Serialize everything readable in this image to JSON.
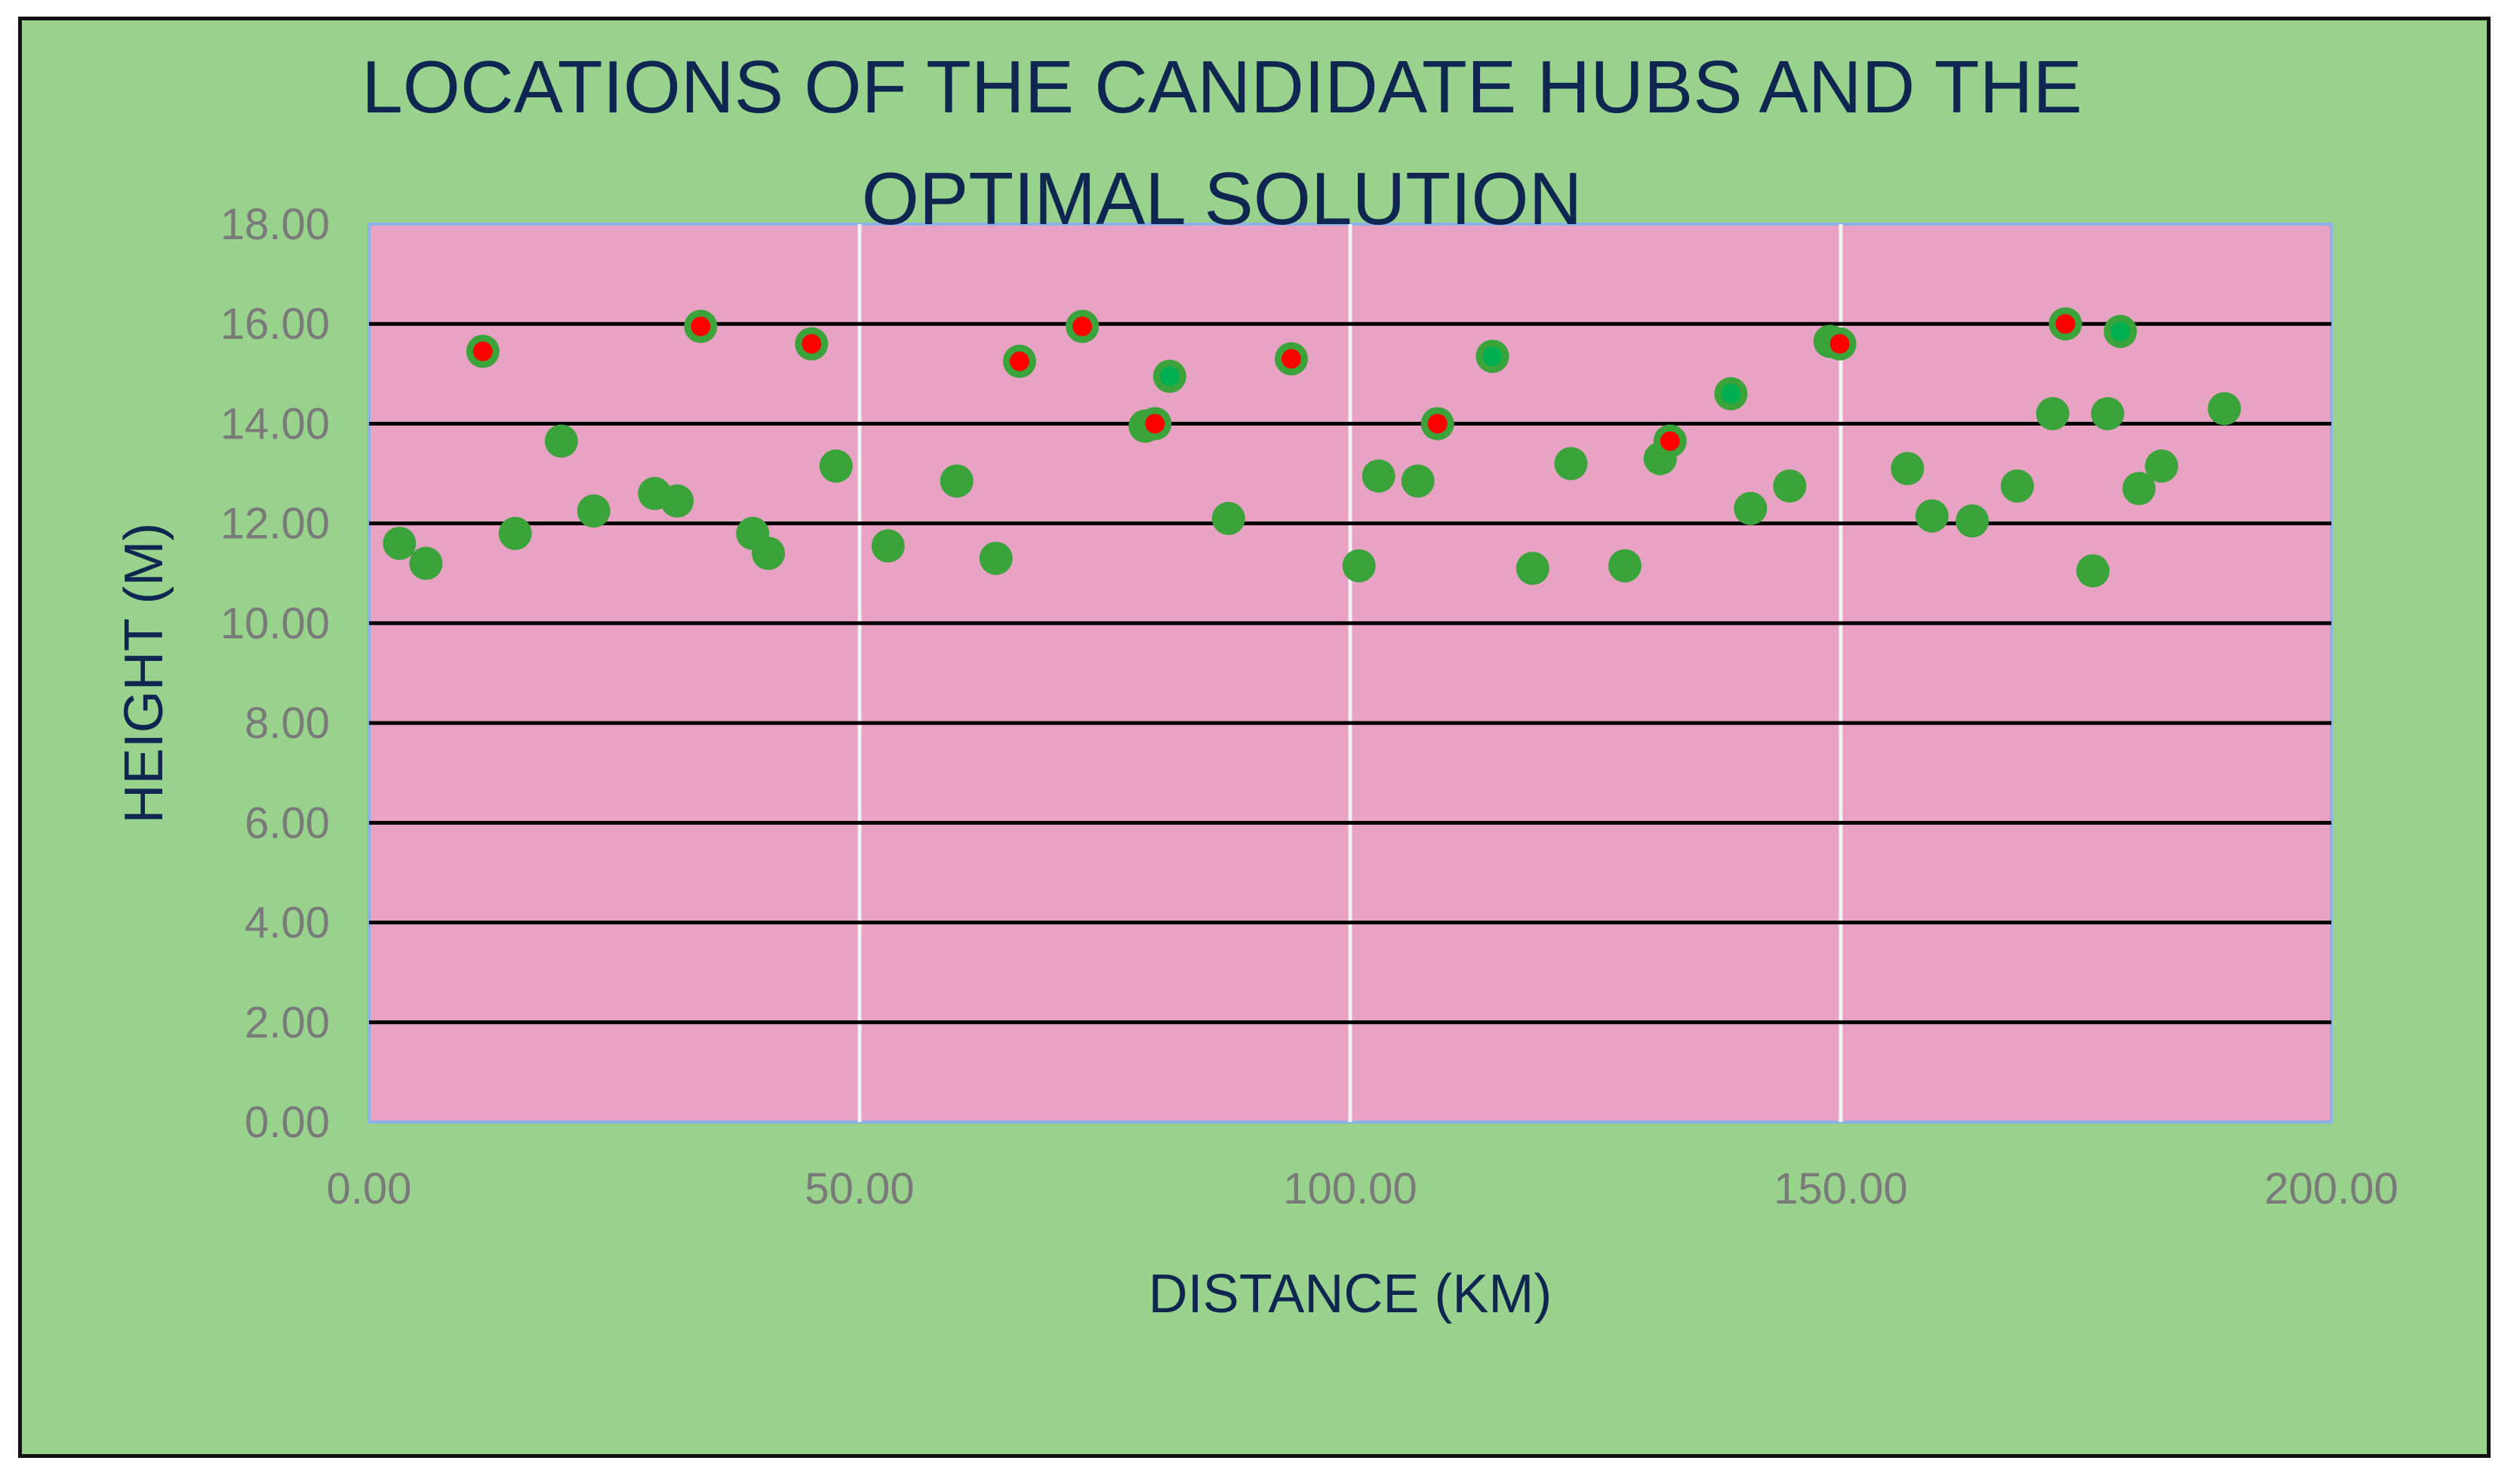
{
  "chart_data": {
    "type": "scatter",
    "title_lines": [
      "LOCATIONS OF THE CANDIDATE HUBS AND THE",
      "OPTIMAL SOLUTION"
    ],
    "xlabel": "DISTANCE (KM)",
    "ylabel": "HEIGHT (M)",
    "xlim": [
      0,
      200
    ],
    "ylim": [
      0,
      18
    ],
    "x_ticks": [
      "0.00",
      "50.00",
      "100.00",
      "150.00",
      "200.00"
    ],
    "y_ticks": [
      "0.00",
      "2.00",
      "4.00",
      "6.00",
      "8.00",
      "10.00",
      "12.00",
      "14.00",
      "16.00",
      "18.00"
    ],
    "grid": "horizontal black lines at major y ticks, vertical white lines at major x ticks",
    "colors": {
      "outer_background": "#98d28c",
      "plot_background": "#e8a2c4",
      "point_green": "#3aa33a",
      "point_red": "#ff0000",
      "point_bright_green": "#00b050"
    },
    "series": [
      {
        "marker": "green circle",
        "points": [
          [
            3.1,
            11.6
          ],
          [
            5.8,
            11.2
          ],
          [
            11.6,
            15.45
          ],
          [
            14.9,
            11.8
          ],
          [
            19.6,
            13.65
          ],
          [
            22.9,
            12.25
          ],
          [
            29.1,
            12.6
          ],
          [
            31.4,
            12.45
          ],
          [
            33.8,
            15.95
          ],
          [
            39.1,
            11.8
          ],
          [
            40.7,
            11.4
          ],
          [
            45.1,
            15.6
          ],
          [
            47.6,
            13.15
          ],
          [
            52.9,
            11.55
          ],
          [
            59.9,
            12.85
          ],
          [
            63.9,
            11.3
          ],
          [
            66.3,
            15.25
          ],
          [
            72.7,
            15.95
          ],
          [
            79.1,
            13.95
          ],
          [
            80.1,
            14.0
          ],
          [
            81.6,
            14.95
          ],
          [
            87.6,
            12.1
          ],
          [
            94.0,
            15.3
          ],
          [
            100.9,
            11.15
          ],
          [
            102.9,
            12.95
          ],
          [
            106.9,
            12.85
          ],
          [
            108.9,
            14.0
          ],
          [
            114.5,
            15.35
          ],
          [
            118.6,
            11.1
          ],
          [
            122.5,
            13.2
          ],
          [
            128.0,
            11.15
          ],
          [
            131.6,
            13.3
          ],
          [
            132.6,
            13.65
          ],
          [
            138.8,
            14.6
          ],
          [
            140.8,
            12.3
          ],
          [
            144.8,
            12.75
          ],
          [
            148.9,
            15.65
          ],
          [
            149.9,
            15.6
          ],
          [
            156.8,
            13.1
          ],
          [
            159.3,
            12.15
          ],
          [
            163.4,
            12.05
          ],
          [
            168.0,
            12.75
          ],
          [
            171.6,
            14.2
          ],
          [
            172.9,
            16.0
          ],
          [
            175.7,
            11.05
          ],
          [
            177.2,
            14.2
          ],
          [
            178.5,
            15.85
          ],
          [
            180.4,
            12.7
          ],
          [
            182.7,
            13.15
          ],
          [
            189.1,
            14.3
          ]
        ]
      },
      {
        "marker": "red dot",
        "points": [
          [
            11.6,
            15.45
          ],
          [
            33.8,
            15.95
          ],
          [
            45.1,
            15.6
          ],
          [
            66.3,
            15.25
          ],
          [
            72.7,
            15.95
          ],
          [
            80.1,
            14.0
          ],
          [
            94.0,
            15.3
          ],
          [
            108.9,
            14.0
          ],
          [
            132.6,
            13.65
          ],
          [
            149.9,
            15.6
          ],
          [
            172.9,
            16.0
          ]
        ]
      },
      {
        "marker": "bright green dot",
        "points": [
          [
            81.6,
            14.95
          ],
          [
            114.5,
            15.35
          ],
          [
            138.8,
            14.6
          ],
          [
            178.5,
            15.85
          ]
        ]
      }
    ]
  }
}
